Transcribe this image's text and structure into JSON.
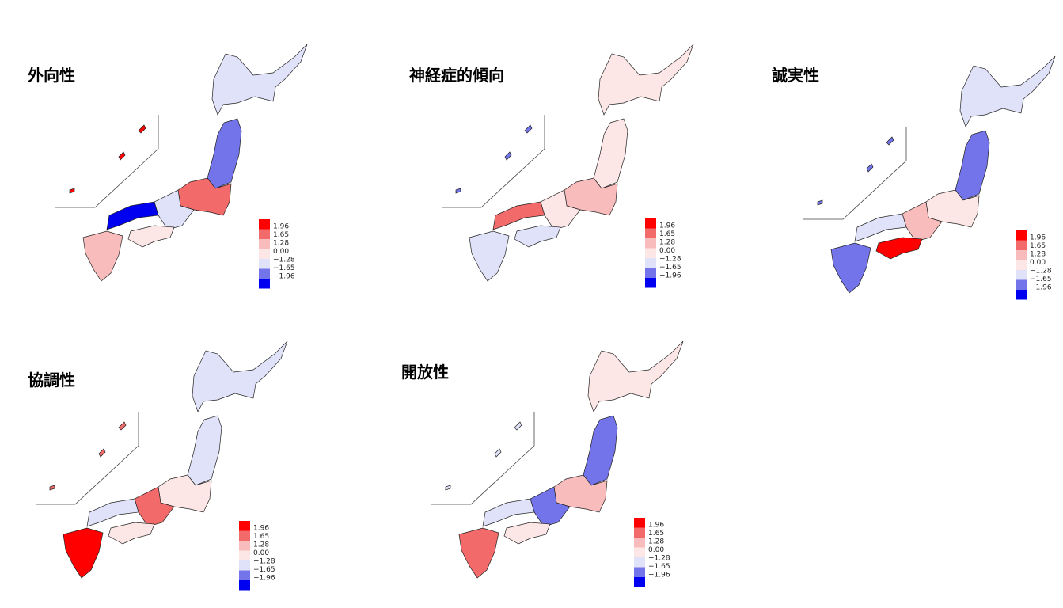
{
  "legend_colors": [
    "#ff0000",
    "#f26a6a",
    "#f9bcbc",
    "#fde6e6",
    "#dfe2f8",
    "#7474ea",
    "#0000f0"
  ],
  "maps": [
    {
      "title": "外向性",
      "legend": [
        "1.96",
        "1.65",
        "1.28",
        "0.00",
        "−1.28",
        "−1.65",
        "−1.96"
      ]
    },
    {
      "title": "神経症的傾向",
      "legend": [
        "1.96",
        "1.65",
        "1.28",
        "0.00",
        "−1.28",
        "−1.65",
        "−1.96"
      ]
    },
    {
      "title": "誠実性",
      "legend": [
        "1.96",
        "1.65",
        "1.28",
        "0.00",
        "−1.28",
        "−1.65",
        "−1.96"
      ]
    },
    {
      "title": "協調性",
      "legend": [
        "1.96",
        "1.65",
        "1.28",
        "0.00",
        "−1.28",
        "−1.65",
        "−1.96"
      ]
    },
    {
      "title": "開放性",
      "legend": [
        "1.96",
        "1.65",
        "1.28",
        "0.00",
        "−1.28",
        "−1.65",
        "−1.96"
      ]
    }
  ]
}
